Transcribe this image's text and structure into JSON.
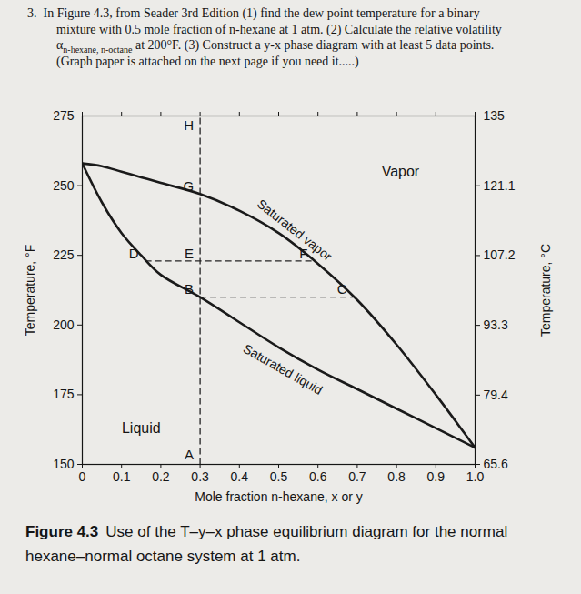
{
  "question": [
    "3.  In Figure 4.3, from Seader 3rd Edition (1) find the dew point temperature for a binary",
    "mixture with 0.5 mole fraction of n-hexane at 1 atm. (2) Calculate the relative volatility",
    {
      "symbol": "α",
      "subscript": "n-hexane, n-octane",
      "text": " at 200°F. (3) Construct a y-x phase diagram with at least 5 data points."
    },
    "(Graph paper is attached on the next page if you need it.....)"
  ],
  "chart_data": {
    "type": "line",
    "x_label": "Mole fraction n-hexane, x or y",
    "y_label": "Temperature, °F",
    "y2_label": "Temperature, °C",
    "x": [
      0,
      0.05,
      0.1,
      0.15,
      0.2,
      0.3,
      0.4,
      0.5,
      0.6,
      0.7,
      0.8,
      0.9,
      1
    ],
    "series": [
      {
        "name": "Saturated vapor",
        "color": "#1a1a1a",
        "line_style": "solid",
        "values": [
          258,
          257,
          255,
          253,
          251,
          247,
          241,
          233,
          222,
          209,
          193,
          175,
          156
        ],
        "label_at": [
          0.54,
          234
        ]
      },
      {
        "name": "Saturated liquid",
        "color": "#1a1a1a",
        "line_style": "solid",
        "values": [
          258,
          244,
          233,
          225,
          218,
          210,
          201,
          192,
          184,
          177,
          170,
          163,
          156
        ],
        "label_at": [
          0.51,
          184
        ]
      }
    ],
    "xlim": [
      0,
      1
    ],
    "xticks": [
      0,
      0.1,
      0.2,
      0.3,
      0.4,
      0.5,
      0.6,
      0.7,
      0.8,
      0.9,
      {
        "value": 1,
        "label": "1.0"
      }
    ],
    "ylim": [
      150,
      275
    ],
    "yticks": [
      150,
      175,
      200,
      225,
      250,
      275
    ],
    "y2lim": [
      65.6,
      135
    ],
    "y2ticks": [
      65.6,
      79.4,
      93.3,
      107.2,
      121.1,
      135
    ],
    "grid": false,
    "points": [
      {
        "label": "A",
        "x": 0.3,
        "y": 150
      },
      {
        "label": "B",
        "x": 0.3,
        "y": 210
      },
      {
        "label": "C",
        "x": 0.69,
        "y": 210
      },
      {
        "label": "D",
        "x": 0.16,
        "y": 223
      },
      {
        "label": "E",
        "x": 0.3,
        "y": 223
      },
      {
        "label": "F",
        "x": 0.59,
        "y": 223
      },
      {
        "label": "G",
        "x": 0.3,
        "y": 247
      },
      {
        "label": "H",
        "x": 0.3,
        "y": 275
      }
    ],
    "guides": [
      {
        "x": [
          0.3,
          0.3
        ],
        "y": [
          150,
          275
        ],
        "line_style": "dashed"
      },
      {
        "x": [
          0.16,
          0.59
        ],
        "y": [
          223,
          223
        ],
        "line_style": "dashed"
      },
      {
        "x": [
          0.3,
          0.69
        ],
        "y": [
          210,
          210
        ],
        "line_style": "dashed"
      }
    ],
    "annotations": [
      {
        "text": "Vapor",
        "x": 0.81,
        "y": 255
      },
      {
        "text": "Liquid",
        "x": 0.15,
        "y": 163
      }
    ],
    "caption": {
      "label": "Figure 4.3",
      "text": "Use of the T–y–x phase equilibrium diagram for the normal hexane–normal octane system at 1 atm."
    }
  }
}
